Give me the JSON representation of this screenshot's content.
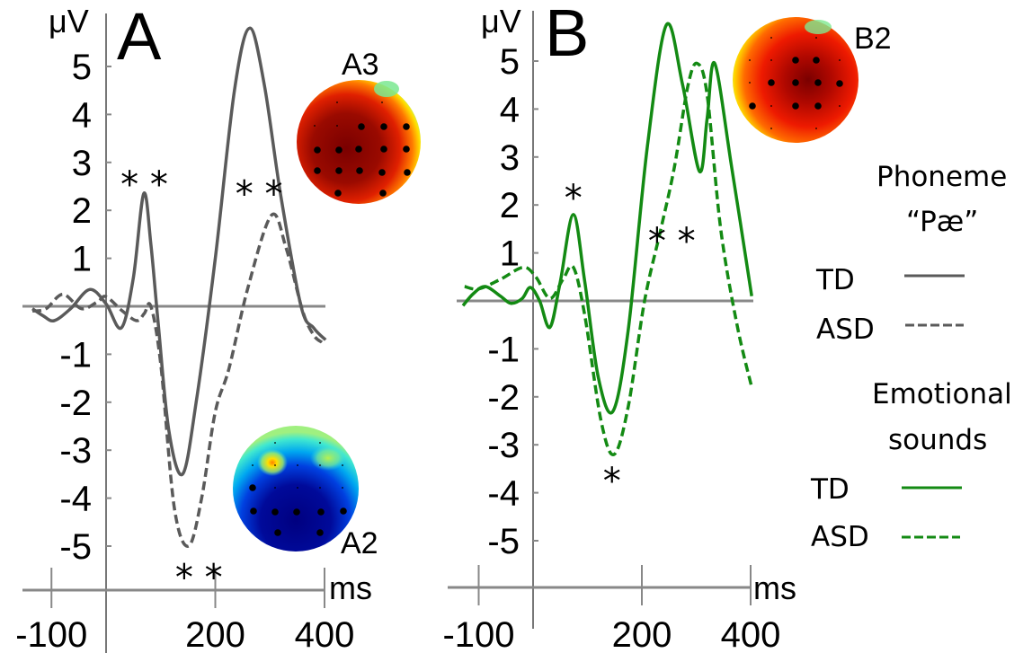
{
  "chart_data": [
    {
      "panel": "A",
      "type": "line",
      "title": "A",
      "xlabel": "ms",
      "ylabel": "μV",
      "xlim": [
        -135,
        405
      ],
      "ylim": [
        -5.5,
        6
      ],
      "x_ticks": [
        -100,
        200,
        400
      ],
      "x_tick_labels": [
        "-100",
        "200",
        "400"
      ],
      "y_ticks": [
        5,
        4,
        3,
        2,
        1,
        -1,
        -2,
        -3,
        -4,
        -5
      ],
      "y_tick_labels": [
        "5",
        "4",
        "3",
        "2",
        "1",
        "-1",
        "-2",
        "-3",
        "-4",
        "-5"
      ],
      "grid": false,
      "condition": "Phoneme “Pæ”",
      "series": [
        {
          "name": "TD",
          "style": "solid",
          "color": "#5a5a5a",
          "x": [
            -135,
            -115,
            -95,
            -65,
            -30,
            0,
            28,
            50,
            69,
            82,
            95,
            115,
            140,
            165,
            200,
            235,
            263,
            290,
            320,
            357,
            380,
            402
          ],
          "y": [
            -0.05,
            -0.2,
            -0.3,
            -0.05,
            0.35,
            0.05,
            -0.45,
            0.6,
            2.35,
            1.3,
            -0.3,
            -2.6,
            -3.5,
            -2.0,
            1.0,
            4.5,
            5.8,
            4.6,
            2.3,
            0.0,
            -0.45,
            -0.7
          ]
        },
        {
          "name": "ASD",
          "style": "dashed",
          "color": "#5a5a5a",
          "x": [
            -135,
            -110,
            -79,
            -45,
            -15,
            0,
            30,
            56,
            70,
            82,
            100,
            125,
            151,
            175,
            200,
            225,
            260,
            303,
            330,
            360,
            380,
            395
          ],
          "y": [
            -0.1,
            -0.05,
            0.25,
            -0.05,
            0.1,
            0.2,
            -0.1,
            -0.3,
            -0.15,
            0.0,
            -1.2,
            -4.2,
            -5.0,
            -4.0,
            -2.2,
            -1.3,
            0.4,
            1.9,
            1.2,
            -0.1,
            -0.6,
            -0.75
          ]
        }
      ],
      "annotations": [
        {
          "text": "**",
          "x": 70,
          "y": 2.7
        },
        {
          "text": "**",
          "x": 280,
          "y": 2.5
        },
        {
          "text": "**",
          "x": 170,
          "y": -5.5
        },
        {
          "text": "A3",
          "kind": "topomap",
          "polarity": "positive"
        },
        {
          "text": "A2",
          "kind": "topomap",
          "polarity": "negative"
        }
      ]
    },
    {
      "panel": "B",
      "type": "line",
      "title": "B",
      "xlabel": "ms",
      "ylabel": "μV",
      "xlim": [
        -130,
        405
      ],
      "ylim": [
        -5.5,
        6
      ],
      "x_ticks": [
        -100,
        200,
        400
      ],
      "x_tick_labels": [
        "-100",
        "200",
        "400"
      ],
      "y_ticks": [
        5,
        4,
        3,
        2,
        1,
        -1,
        -2,
        -3,
        -4,
        -5
      ],
      "y_tick_labels": [
        "5",
        "4",
        "3",
        "2",
        "1",
        "-1",
        "-2",
        "-3",
        "-4",
        "-5"
      ],
      "grid": false,
      "condition": "Emotional sounds",
      "series": [
        {
          "name": "TD",
          "style": "solid",
          "color": "#138a13",
          "x": [
            -129,
            -110,
            -88,
            -60,
            -41,
            -20,
            -5,
            12,
            31,
            50,
            74,
            95,
            120,
            147,
            175,
            210,
            245,
            275,
            306,
            320,
            334,
            365,
            402
          ],
          "y": [
            -0.1,
            0.15,
            0.3,
            0.1,
            -0.05,
            0.05,
            0.28,
            0.0,
            -0.55,
            0.4,
            1.8,
            0.4,
            -1.6,
            -2.3,
            -0.6,
            3.2,
            5.75,
            4.5,
            2.7,
            3.8,
            4.95,
            2.8,
            0.1
          ]
        },
        {
          "name": "ASD",
          "style": "dashed",
          "color": "#138a13",
          "x": [
            -126,
            -100,
            -60,
            -18,
            5,
            31,
            55,
            74,
            95,
            125,
            149,
            175,
            205,
            235,
            260,
            285,
            302,
            320,
            345,
            375,
            402
          ],
          "y": [
            0.3,
            0.25,
            0.45,
            0.7,
            0.5,
            0.05,
            0.45,
            0.7,
            -0.3,
            -2.5,
            -3.2,
            -2.2,
            0.0,
            1.5,
            2.8,
            4.5,
            4.95,
            4.3,
            1.5,
            -0.5,
            -1.8
          ]
        }
      ],
      "annotations": [
        {
          "text": "*",
          "x": 74,
          "y": 2.3
        },
        {
          "text": "*",
          "x": 145,
          "y": -3.6
        },
        {
          "text": "**",
          "x": 255,
          "y": 1.4
        },
        {
          "text": "B2",
          "kind": "topomap",
          "polarity": "positive"
        }
      ]
    }
  ],
  "legend": {
    "groups": [
      {
        "title_lines": [
          "Phoneme",
          "“Pæ”"
        ],
        "entries": [
          {
            "label": "TD",
            "style": "solid",
            "color": "#5a5a5a"
          },
          {
            "label": "ASD",
            "style": "dashed",
            "color": "#5a5a5a"
          }
        ]
      },
      {
        "title_lines": [
          "Emotional",
          "sounds"
        ],
        "entries": [
          {
            "label": "TD",
            "style": "solid",
            "color": "#138a13"
          },
          {
            "label": "ASD",
            "style": "dashed",
            "color": "#138a13"
          }
        ]
      }
    ],
    "placement": "right"
  },
  "topomaps": {
    "A3": {
      "label": "A3",
      "polarity": "positive"
    },
    "A2": {
      "label": "A2",
      "polarity": "negative"
    },
    "B2": {
      "label": "B2",
      "polarity": "positive"
    }
  },
  "colors": {
    "axis": "#777777",
    "gray_series": "#5a5a5a",
    "green_series": "#138a13"
  }
}
